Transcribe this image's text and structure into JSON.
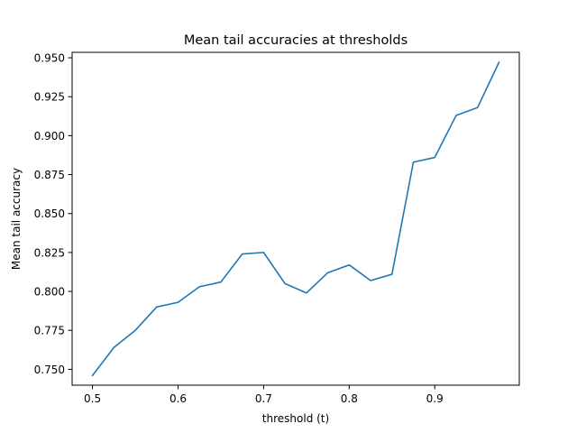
{
  "chart_data": {
    "type": "line",
    "title": "Mean tail accuracies at thresholds",
    "xlabel": "threshold (t)",
    "ylabel": "Mean tail accuracy",
    "xlim": [
      0.4762,
      0.9988
    ],
    "ylim": [
      0.7398,
      0.9535
    ],
    "xticks": [
      0.5,
      0.6,
      0.7,
      0.8,
      0.9
    ],
    "xtick_labels": [
      "0.5",
      "0.6",
      "0.7",
      "0.8",
      "0.9"
    ],
    "yticks": [
      0.75,
      0.775,
      0.8,
      0.825,
      0.85,
      0.875,
      0.9,
      0.925,
      0.95
    ],
    "ytick_labels": [
      "0.750",
      "0.775",
      "0.800",
      "0.825",
      "0.850",
      "0.875",
      "0.900",
      "0.925",
      "0.950"
    ],
    "grid": false,
    "series": [
      {
        "color": "#1f77b4",
        "x": [
          0.5,
          0.525,
          0.55,
          0.575,
          0.6,
          0.625,
          0.65,
          0.675,
          0.7,
          0.725,
          0.75,
          0.775,
          0.8,
          0.825,
          0.85,
          0.875,
          0.9,
          0.925,
          0.95,
          0.975
        ],
        "y": [
          0.746,
          0.764,
          0.775,
          0.79,
          0.793,
          0.803,
          0.806,
          0.824,
          0.825,
          0.805,
          0.799,
          0.812,
          0.817,
          0.807,
          0.811,
          0.883,
          0.886,
          0.913,
          0.918,
          0.947
        ]
      }
    ]
  }
}
